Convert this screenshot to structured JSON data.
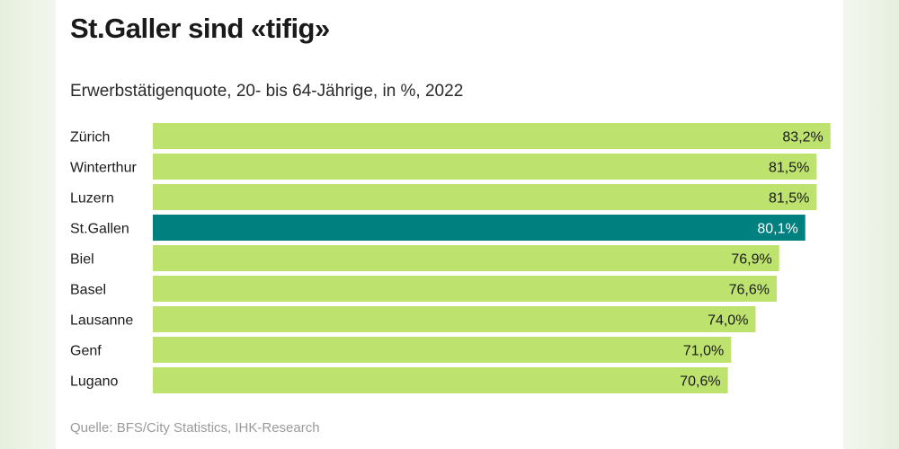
{
  "title": "St.Galler sind «tifig»",
  "subtitle": "Erwerbstätigenquote, 20- bis 64-Jährige, in %, 2022",
  "source": "Quelle: BFS/City Statistics, IHK-Research",
  "colors": {
    "bar": "#bde26e",
    "highlight": "#00807f",
    "label_dark": "#1a1a1a",
    "label_light": "#ffffff"
  },
  "chart_data": {
    "type": "bar",
    "orientation": "horizontal",
    "title": "St.Galler sind «tifig»",
    "subtitle": "Erwerbstätigenquote, 20- bis 64-Jährige, in %, 2022",
    "categories": [
      "Zürich",
      "Winterthur",
      "Luzern",
      "St.Gallen",
      "Biel",
      "Basel",
      "Lausanne",
      "Genf",
      "Lugano"
    ],
    "values": [
      83.2,
      81.5,
      81.5,
      80.1,
      76.9,
      76.6,
      74.0,
      71.0,
      70.6
    ],
    "value_labels": [
      "83,2%",
      "81,5%",
      "81,5%",
      "80,1%",
      "76,9%",
      "76,6%",
      "74,0%",
      "71,0%",
      "70,6%"
    ],
    "highlight": "St.Gallen",
    "xlabel": "",
    "ylabel": "",
    "grid": false,
    "legend": "none"
  }
}
